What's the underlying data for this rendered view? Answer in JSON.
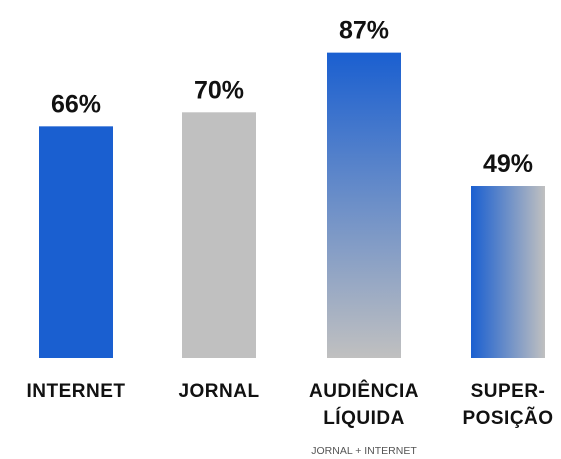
{
  "chart_data": {
    "type": "bar",
    "categories": [
      "INTERNET",
      "JORNAL",
      "AUDIÊNCIA LÍQUIDA",
      "SUPER-POSIÇÃO"
    ],
    "category_lines": [
      [
        "INTERNET"
      ],
      [
        "JORNAL"
      ],
      [
        "AUDIÊNCIA",
        "LÍQUIDA"
      ],
      [
        "SUPER-",
        "POSIÇÃO"
      ]
    ],
    "values": [
      66,
      70,
      87,
      49
    ],
    "value_labels": [
      "66%",
      "70%",
      "87%",
      "49%"
    ],
    "notes": [
      "",
      "",
      "JORNAL + INTERNET",
      ""
    ],
    "fills": [
      "blue",
      "gray",
      "gradient-vertical",
      "gradient-horizontal"
    ],
    "ylim": [
      0,
      100
    ],
    "title": "",
    "xlabel": "",
    "ylabel": "",
    "grid": false,
    "colors": {
      "blue": "#1a5fd0",
      "gray": "#c0c0c0",
      "text": "#111111",
      "note": "#555555"
    }
  }
}
